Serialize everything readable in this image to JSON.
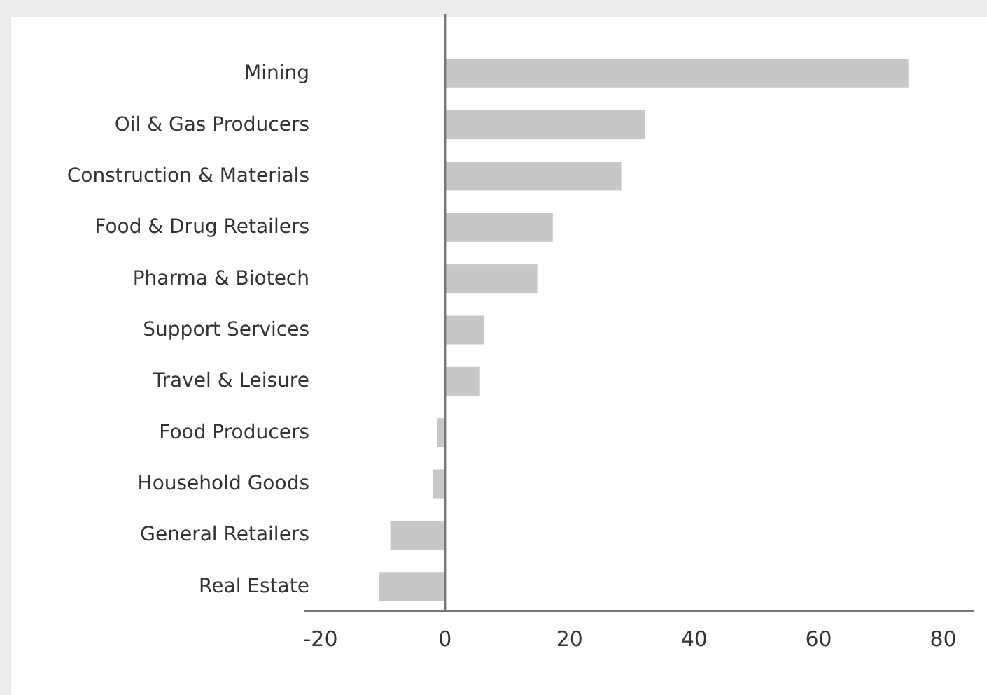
{
  "chart_data": {
    "type": "bar",
    "orientation": "horizontal",
    "categories": [
      "Mining",
      "Oil & Gas Producers",
      "Construction & Materials",
      "Food & Drug Retailers",
      "Pharma & Biotech",
      "Support Services",
      "Travel & Leisure",
      "Food Producers",
      "Household Goods",
      "General Retailers",
      "Real Estate"
    ],
    "values": [
      74.4,
      32.1,
      28.3,
      17.3,
      14.8,
      6.3,
      5.6,
      -1.3,
      -2.0,
      -8.8,
      -10.6
    ],
    "color": "#c6c7c8",
    "xlim": [
      -22.7,
      85
    ],
    "xticks": [
      -20,
      0,
      20,
      40,
      60,
      80
    ]
  }
}
